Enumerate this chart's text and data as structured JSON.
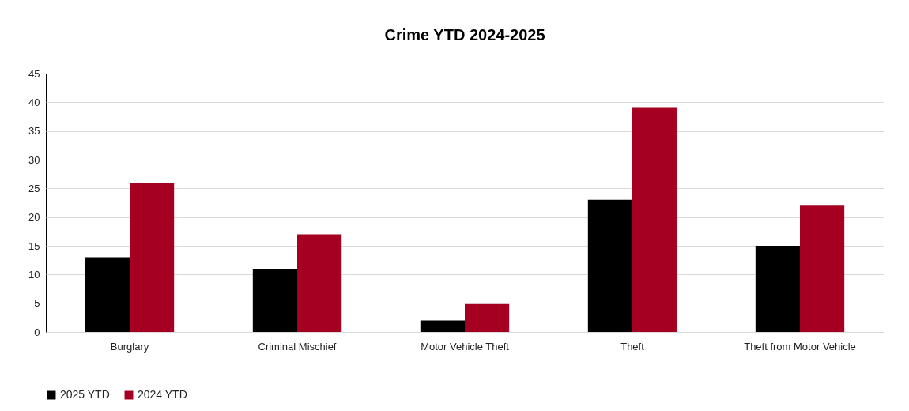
{
  "chart_data": {
    "type": "bar",
    "title": "Crime YTD 2024-2025",
    "categories": [
      "Burglary",
      "Criminal Mischief",
      "Motor Vehicle Theft",
      "Theft",
      "Theft from Motor Vehicle"
    ],
    "series": [
      {
        "name": "2025 YTD",
        "color": "#000000",
        "values": [
          13,
          11,
          2,
          23,
          15
        ]
      },
      {
        "name": "2024 YTD",
        "color": "#a50021",
        "values": [
          26,
          17,
          5,
          39,
          22
        ]
      }
    ],
    "ylim": [
      0,
      45
    ],
    "yticks": [
      0,
      5,
      10,
      15,
      20,
      25,
      30,
      35,
      40,
      45
    ],
    "grid": "y",
    "legend": "bottom"
  }
}
